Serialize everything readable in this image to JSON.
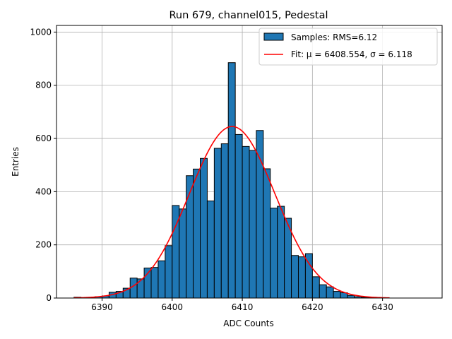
{
  "chart_data": {
    "type": "bar",
    "title": "Run 679, channel015, Pedestal",
    "xlabel": "ADC Counts",
    "ylabel": "Entries",
    "xlim": [
      6383.5,
      6438.5
    ],
    "ylim": [
      0,
      1025
    ],
    "grid": true,
    "legend_position": "top-right",
    "xticks": [
      6390,
      6400,
      6410,
      6420,
      6430
    ],
    "yticks": [
      0,
      200,
      400,
      600,
      800,
      1000
    ],
    "bar_color": "#1f77b4",
    "fit_color": "#ff0000",
    "bins": {
      "edges": [
        6386,
        6387,
        6388,
        6389,
        6390,
        6391,
        6392,
        6393,
        6394,
        6395,
        6396,
        6397,
        6398,
        6399,
        6400,
        6401,
        6402,
        6403,
        6404,
        6405,
        6406,
        6407,
        6408,
        6409,
        6410,
        6411,
        6412,
        6413,
        6414,
        6415,
        6416,
        6417,
        6418,
        6419,
        6420,
        6421,
        6422,
        6423,
        6424,
        6425,
        6426,
        6427,
        6428,
        6429,
        6430,
        6431,
        6432,
        6433,
        6434,
        6435,
        6436
      ],
      "values": [
        3,
        0,
        2,
        5,
        8,
        22,
        25,
        37,
        75,
        72,
        113,
        115,
        140,
        197,
        348,
        335,
        460,
        485,
        525,
        365,
        563,
        580,
        885,
        615,
        570,
        555,
        630,
        486,
        338,
        345,
        300,
        160,
        155,
        167,
        80,
        50,
        42,
        25,
        20,
        10,
        5,
        3,
        2,
        1,
        0,
        0,
        0,
        0,
        0,
        0
      ]
    },
    "legend": {
      "samples_label": "Samples: RMS=6.12",
      "fit_label": "Fit: μ = 6408.554, σ = 6.118"
    },
    "fit": {
      "mu": 6408.554,
      "sigma": 6.118,
      "amplitude": 645,
      "x_range": [
        6386,
        6431
      ]
    }
  }
}
